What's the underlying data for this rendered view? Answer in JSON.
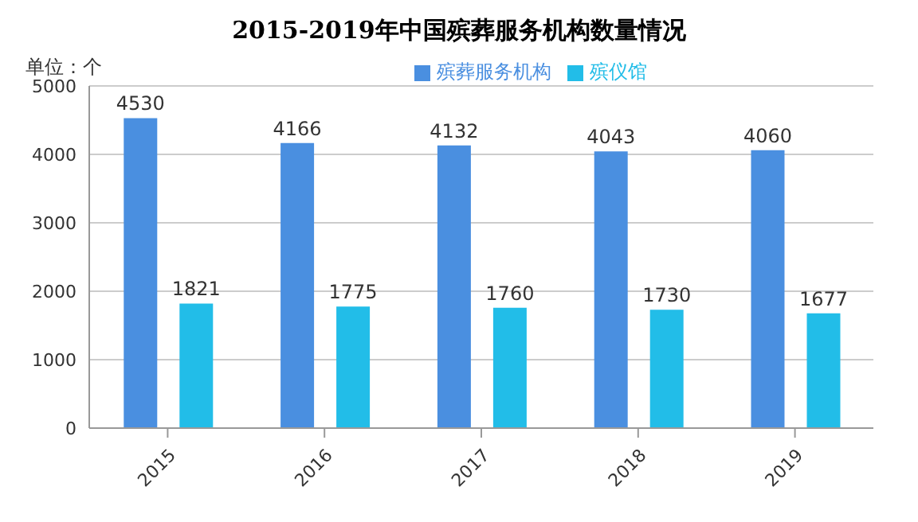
{
  "chart_data": {
    "type": "bar",
    "title": "2015-2019年中国殡葬服务机构数量情况",
    "categories": [
      "2015",
      "2016",
      "2017",
      "2018",
      "2019"
    ],
    "series": [
      {
        "name": "殡葬服务机构",
        "color": "#4a8fe0",
        "values": [
          4530,
          4166,
          4132,
          4043,
          4060
        ]
      },
      {
        "name": "殡仪馆",
        "color": "#22bde8",
        "values": [
          1821,
          1775,
          1760,
          1730,
          1677
        ]
      }
    ],
    "ylim": [
      0,
      5000
    ],
    "yticks": [
      0,
      1000,
      2000,
      3000,
      4000,
      5000
    ],
    "grid": "y",
    "legend": "top",
    "data_labels": true,
    "annotations": [
      "单位：个"
    ]
  }
}
